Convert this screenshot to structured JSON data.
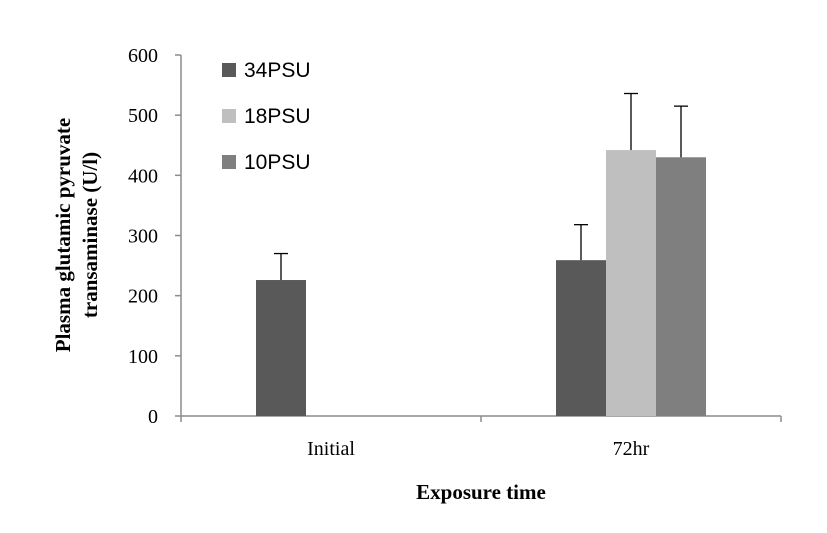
{
  "chart_data": {
    "type": "bar",
    "title": "",
    "xlabel": "Exposure time",
    "ylabel_lines": [
      "Plasma glutamic pyruvate",
      "transaminase  (U/l)"
    ],
    "ylim": [
      0,
      600
    ],
    "yticks": [
      0,
      100,
      200,
      300,
      400,
      500,
      600
    ],
    "categories": [
      "Initial",
      "72hr"
    ],
    "series": [
      {
        "name": "34PSU",
        "color": "#595959",
        "values": [
          226,
          259
        ],
        "errors": [
          44,
          59
        ]
      },
      {
        "name": "18PSU",
        "color": "#bfbfbf",
        "values": [
          null,
          442
        ],
        "errors": [
          null,
          94
        ]
      },
      {
        "name": "10PSU",
        "color": "#7f7f7f",
        "values": [
          null,
          430
        ],
        "errors": [
          null,
          85
        ]
      }
    ],
    "legend_position": "top-left",
    "grid": false
  }
}
